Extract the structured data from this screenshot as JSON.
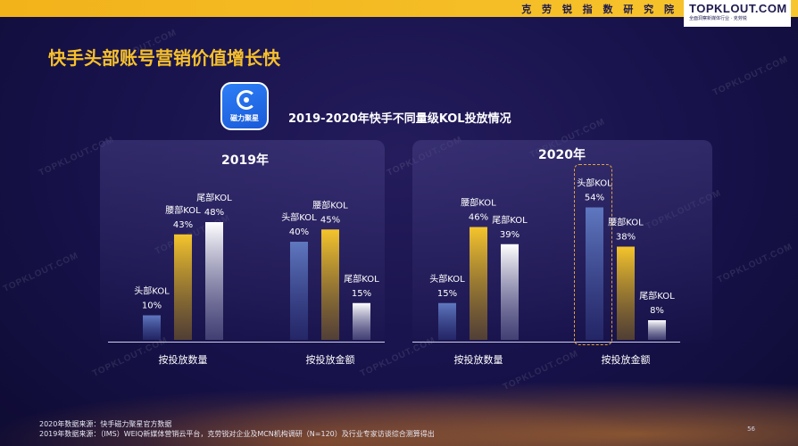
{
  "header": {
    "research_name": "克 劳 锐 指 数 研 究 院",
    "brand_name": "TOPKLOUT.COM",
    "brand_sub": "全面洞察新媒体行业 · 克劳锐"
  },
  "page_title": "快手头部账号营销价值增长快",
  "logo_text": "磁力聚星",
  "watermark": "TOPKLOUT.COM",
  "colors": {
    "head": "#5a6fb0",
    "waist": "#f3c12c",
    "tail": "#ffffff",
    "accent": "#f7c02b"
  },
  "chart_data": {
    "type": "bar",
    "title": "2019-2020年快手不同量级KOL投放情况",
    "unit": "%",
    "series_names": [
      "头部KOL",
      "腰部KOL",
      "尾部KOL"
    ],
    "panels": [
      {
        "year": "2019年",
        "groups": [
          {
            "category": "按投放数量",
            "values": [
              10,
              43,
              48
            ]
          },
          {
            "category": "按投放金额",
            "values": [
              40,
              45,
              15
            ]
          }
        ]
      },
      {
        "year": "2020年",
        "groups": [
          {
            "category": "按投放数量",
            "values": [
              15,
              46,
              39
            ]
          },
          {
            "category": "按投放金额",
            "values": [
              54,
              38,
              8
            ]
          }
        ]
      }
    ],
    "ylim": [
      0,
      60
    ],
    "legend": "none"
  },
  "footnotes": {
    "line1": "2020年数据来源：快手磁力聚星官方数据",
    "line2": "2019年数据来源：（IMS）WEIQ新媒体营销云平台，克劳锐对企业及MCN机构调研（N=120）及行业专家访谈综合测算得出"
  },
  "page_number": "56"
}
